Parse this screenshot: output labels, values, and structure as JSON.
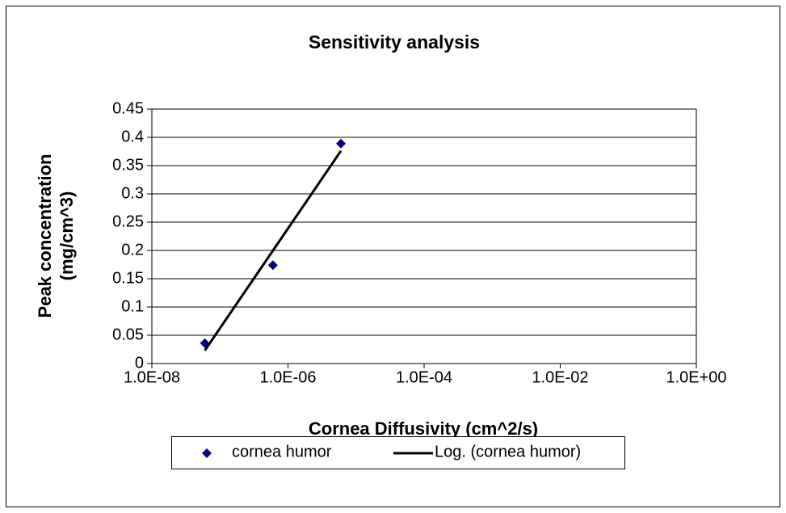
{
  "chart_data": {
    "type": "scatter",
    "title": "Sensitivity analysis",
    "xlabel": "Cornea Diffusivity (cm^2/s)",
    "ylabel": [
      "Peak concentration",
      "(mg/cm^3)"
    ],
    "xscale": "log",
    "xlim": [
      1e-08,
      1
    ],
    "xticks": [
      {
        "value": 1e-08,
        "label": "1.0E-08"
      },
      {
        "value": 1e-06,
        "label": "1.0E-06"
      },
      {
        "value": 0.0001,
        "label": "1.0E-04"
      },
      {
        "value": 0.01,
        "label": "1.0E-02"
      },
      {
        "value": 1,
        "label": "1.0E+00"
      }
    ],
    "ylim": [
      0,
      0.45
    ],
    "yticks": [
      0,
      0.05,
      0.1,
      0.15,
      0.2,
      0.25,
      0.3,
      0.35,
      0.4,
      0.45
    ],
    "grid": true,
    "legend": "bottom",
    "series": [
      {
        "name": "cornea humor",
        "color": "#000080",
        "x": [
          6e-08,
          6e-07,
          6e-06
        ],
        "values": [
          0.036,
          0.174,
          0.389
        ],
        "trendline": {
          "name": "Log. (cornea humor)",
          "kind": "log",
          "color": "#000000"
        }
      }
    ]
  }
}
